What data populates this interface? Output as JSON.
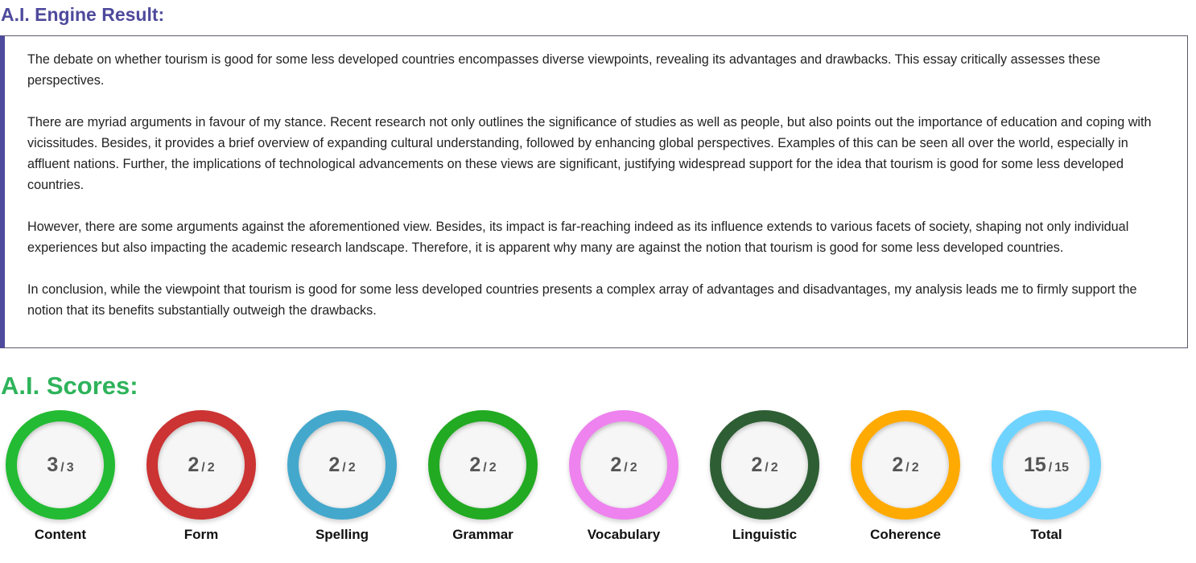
{
  "result": {
    "title": "A.I. Engine Result:",
    "paragraphs": [
      "The debate on whether tourism is good for some less developed countries encompasses diverse viewpoints, revealing its advantages and drawbacks. This essay critically assesses these perspectives.",
      "There are myriad arguments in favour of my stance. Recent research not only outlines the significance of studies as well as people, but also points out the importance of education and coping with vicissitudes. Besides, it provides a brief overview of expanding cultural understanding, followed by enhancing global perspectives. Examples of this can be seen all over the world, especially in affluent nations. Further, the implications of technological advancements on these views are significant, justifying widespread support for the idea that tourism is good for some less developed countries.",
      "However, there are some arguments against the aforementioned view. Besides, its impact is far-reaching indeed as its influence extends to various facets of society, shaping not only individual experiences but also impacting the academic research landscape. Therefore, it is apparent why many are against the notion that tourism is good for some less developed countries.",
      "In conclusion, while the viewpoint that tourism is good for some less developed countries presents a complex array of advantages and disadvantages, my analysis leads me to firmly support the notion that its benefits substantially outweigh the drawbacks."
    ]
  },
  "scores": {
    "title": "A.I. Scores:",
    "separator": "/",
    "items": [
      {
        "label": "Content",
        "value": "3",
        "max": "3",
        "color": "#22bb33"
      },
      {
        "label": "Form",
        "value": "2",
        "max": "2",
        "color": "#cc3333"
      },
      {
        "label": "Spelling",
        "value": "2",
        "max": "2",
        "color": "#44a8cc"
      },
      {
        "label": "Grammar",
        "value": "2",
        "max": "2",
        "color": "#22aa22"
      },
      {
        "label": "Vocabulary",
        "value": "2",
        "max": "2",
        "color": "#ee82ee"
      },
      {
        "label": "Linguistic",
        "value": "2",
        "max": "2",
        "color": "#2e5e34"
      },
      {
        "label": "Coherence",
        "value": "2",
        "max": "2",
        "color": "#ffaa00"
      },
      {
        "label": "Total",
        "value": "15",
        "max": "15",
        "color": "#6fd3ff"
      }
    ]
  }
}
